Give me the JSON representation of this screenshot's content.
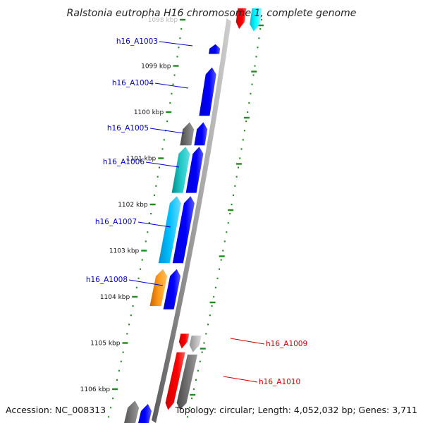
{
  "title": "Ralstonia eutropha H16 chromosome 1, complete genome",
  "footer": {
    "accession": "Accession: NC_008313",
    "topology": "Topology: circular; Length: 4,052,032 bp; Genes: 3,711"
  },
  "colors": {
    "forward_label": "#0000cc",
    "reverse_label": "#cc0000",
    "tick": "#228822",
    "backbone": "#808080"
  },
  "kbp_ticks": [
    {
      "label": "1098 kbp",
      "faded": true
    },
    {
      "label": "1099 kbp"
    },
    {
      "label": "1100 kbp"
    },
    {
      "label": "1101 kbp"
    },
    {
      "label": "1102 kbp"
    },
    {
      "label": "1103 kbp"
    },
    {
      "label": "1104 kbp"
    },
    {
      "label": "1105 kbp"
    },
    {
      "label": "1106 kbp"
    }
  ],
  "gene_labels": [
    {
      "name": "h16_A1003",
      "strand": "forward"
    },
    {
      "name": "h16_A1004",
      "strand": "forward"
    },
    {
      "name": "h16_A1005",
      "strand": "forward"
    },
    {
      "name": "h16_A1006",
      "strand": "forward"
    },
    {
      "name": "h16_A1007",
      "strand": "forward"
    },
    {
      "name": "h16_A1008",
      "strand": "forward"
    },
    {
      "name": "h16_A1009",
      "strand": "reverse"
    },
    {
      "name": "h16_A1010",
      "strand": "reverse"
    }
  ],
  "features": [
    {
      "strand": "reverse",
      "color": "red",
      "start": 1097.75,
      "end": 1098.2
    },
    {
      "strand": "reverse",
      "color": "cyan",
      "start": 1097.75,
      "end": 1098.25
    },
    {
      "strand": "forward",
      "color": "blue",
      "start": 1098.53,
      "end": 1098.74
    },
    {
      "strand": "forward",
      "color": "blue",
      "start": 1099.03,
      "end": 1100.08
    },
    {
      "strand": "forward",
      "color": "gray",
      "start": 1100.22,
      "end": 1100.72
    },
    {
      "strand": "forward",
      "color": "blue",
      "start": 1100.22,
      "end": 1100.72
    },
    {
      "strand": "forward",
      "color": "teal",
      "start": 1100.75,
      "end": 1101.75
    },
    {
      "strand": "forward",
      "color": "blue",
      "start": 1100.75,
      "end": 1101.75
    },
    {
      "strand": "forward",
      "color": "lightblue",
      "start": 1101.82,
      "end": 1103.27
    },
    {
      "strand": "forward",
      "color": "blue",
      "start": 1101.82,
      "end": 1103.27
    },
    {
      "strand": "forward",
      "color": "orange",
      "start": 1103.4,
      "end": 1104.2
    },
    {
      "strand": "forward",
      "color": "blue",
      "start": 1103.4,
      "end": 1104.27
    },
    {
      "strand": "reverse",
      "color": "red",
      "start": 1104.8,
      "end": 1105.12
    },
    {
      "strand": "reverse",
      "color": "lightgray",
      "start": 1104.84,
      "end": 1105.2
    },
    {
      "strand": "reverse",
      "color": "red",
      "start": 1105.2,
      "end": 1106.45
    },
    {
      "strand": "reverse",
      "color": "gray",
      "start": 1105.25,
      "end": 1106.45
    },
    {
      "strand": "forward",
      "color": "gray",
      "start": 1106.25,
      "end": 1107.0
    },
    {
      "strand": "forward",
      "color": "blue",
      "start": 1106.32,
      "end": 1107.0
    }
  ]
}
